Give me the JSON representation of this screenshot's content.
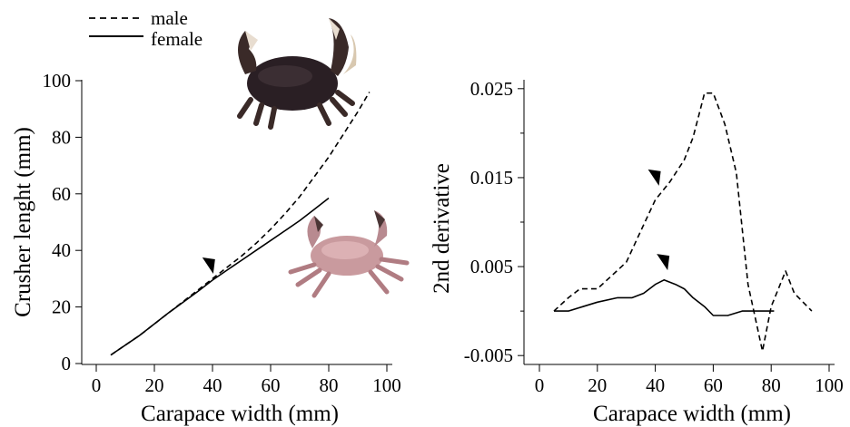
{
  "legend": {
    "items": [
      {
        "label": "male",
        "style": "dashed"
      },
      {
        "label": "female",
        "style": "solid"
      }
    ],
    "placement": "top-left"
  },
  "colors": {
    "line": "#000000",
    "background": "#ffffff"
  },
  "icons": [
    "male-crab-photo",
    "female-crab-photo",
    "growth-change-arrowhead"
  ],
  "chart_data": [
    {
      "type": "line",
      "xlabel": "Carapace width (mm)",
      "ylabel": "Crusher lenght (mm)",
      "xlim": [
        0,
        100
      ],
      "ylim": [
        0,
        100
      ],
      "xticks": [
        "0",
        "20",
        "40",
        "60",
        "80",
        "100"
      ],
      "yticks": [
        "0",
        "20",
        "40",
        "60",
        "80",
        "100"
      ],
      "grid": false,
      "series": [
        {
          "name": "male",
          "style": "dashed",
          "x": [
            5,
            15,
            25,
            35,
            40,
            45,
            50,
            55,
            60,
            65,
            70,
            75,
            80,
            85,
            90,
            94
          ],
          "y": [
            3,
            10,
            18,
            26,
            30,
            34,
            38,
            42.5,
            47.5,
            53,
            59,
            66,
            73,
            81,
            89,
            96
          ]
        },
        {
          "name": "female",
          "style": "solid",
          "x": [
            5,
            15,
            25,
            35,
            40,
            45,
            50,
            55,
            60,
            65,
            70,
            75,
            80
          ],
          "y": [
            3,
            10,
            18,
            25.5,
            29.5,
            33,
            36.5,
            40,
            43.5,
            47,
            50.5,
            54.5,
            58.5
          ]
        }
      ],
      "annotations": [
        {
          "type": "arrowhead",
          "x": 39,
          "y": 33
        }
      ]
    },
    {
      "type": "line",
      "xlabel": "Carapace width (mm)",
      "ylabel": "2nd derivative",
      "xlim": [
        0,
        100
      ],
      "ylim": [
        -0.006,
        0.026
      ],
      "xticks": [
        "0",
        "20",
        "40",
        "60",
        "80",
        "100"
      ],
      "yticks": [
        "-0.005",
        "0.005",
        "0.015",
        "0.025"
      ],
      "ytick_values": [
        -0.005,
        0.005,
        0.015,
        0.025
      ],
      "grid": false,
      "series": [
        {
          "name": "male",
          "style": "dashed",
          "x": [
            5,
            10,
            14,
            20,
            25,
            30,
            35,
            40,
            45,
            50,
            53,
            55,
            57,
            60,
            64,
            68,
            72,
            77,
            80,
            85,
            88,
            94
          ],
          "y": [
            0,
            0.0015,
            0.0025,
            0.0025,
            0.004,
            0.0055,
            0.009,
            0.0125,
            0.0145,
            0.017,
            0.0195,
            0.022,
            0.0245,
            0.0245,
            0.021,
            0.0155,
            0.003,
            -0.0045,
            0.0005,
            0.0045,
            0.002,
            0
          ]
        },
        {
          "name": "female",
          "style": "solid",
          "x": [
            5,
            10,
            15,
            20,
            27,
            32,
            36,
            40,
            43,
            47,
            50,
            53,
            57,
            60,
            65,
            70,
            75,
            81
          ],
          "y": [
            0,
            0,
            0.0005,
            0.001,
            0.0015,
            0.0015,
            0.002,
            0.003,
            0.0035,
            0.003,
            0.0025,
            0.0015,
            0.0005,
            -0.0005,
            -0.0005,
            0,
            0,
            0
          ]
        }
      ],
      "annotations": [
        {
          "type": "arrowhead",
          "x": 40,
          "y": 0.0145
        },
        {
          "type": "arrowhead",
          "x": 43,
          "y": 0.005
        }
      ]
    }
  ]
}
